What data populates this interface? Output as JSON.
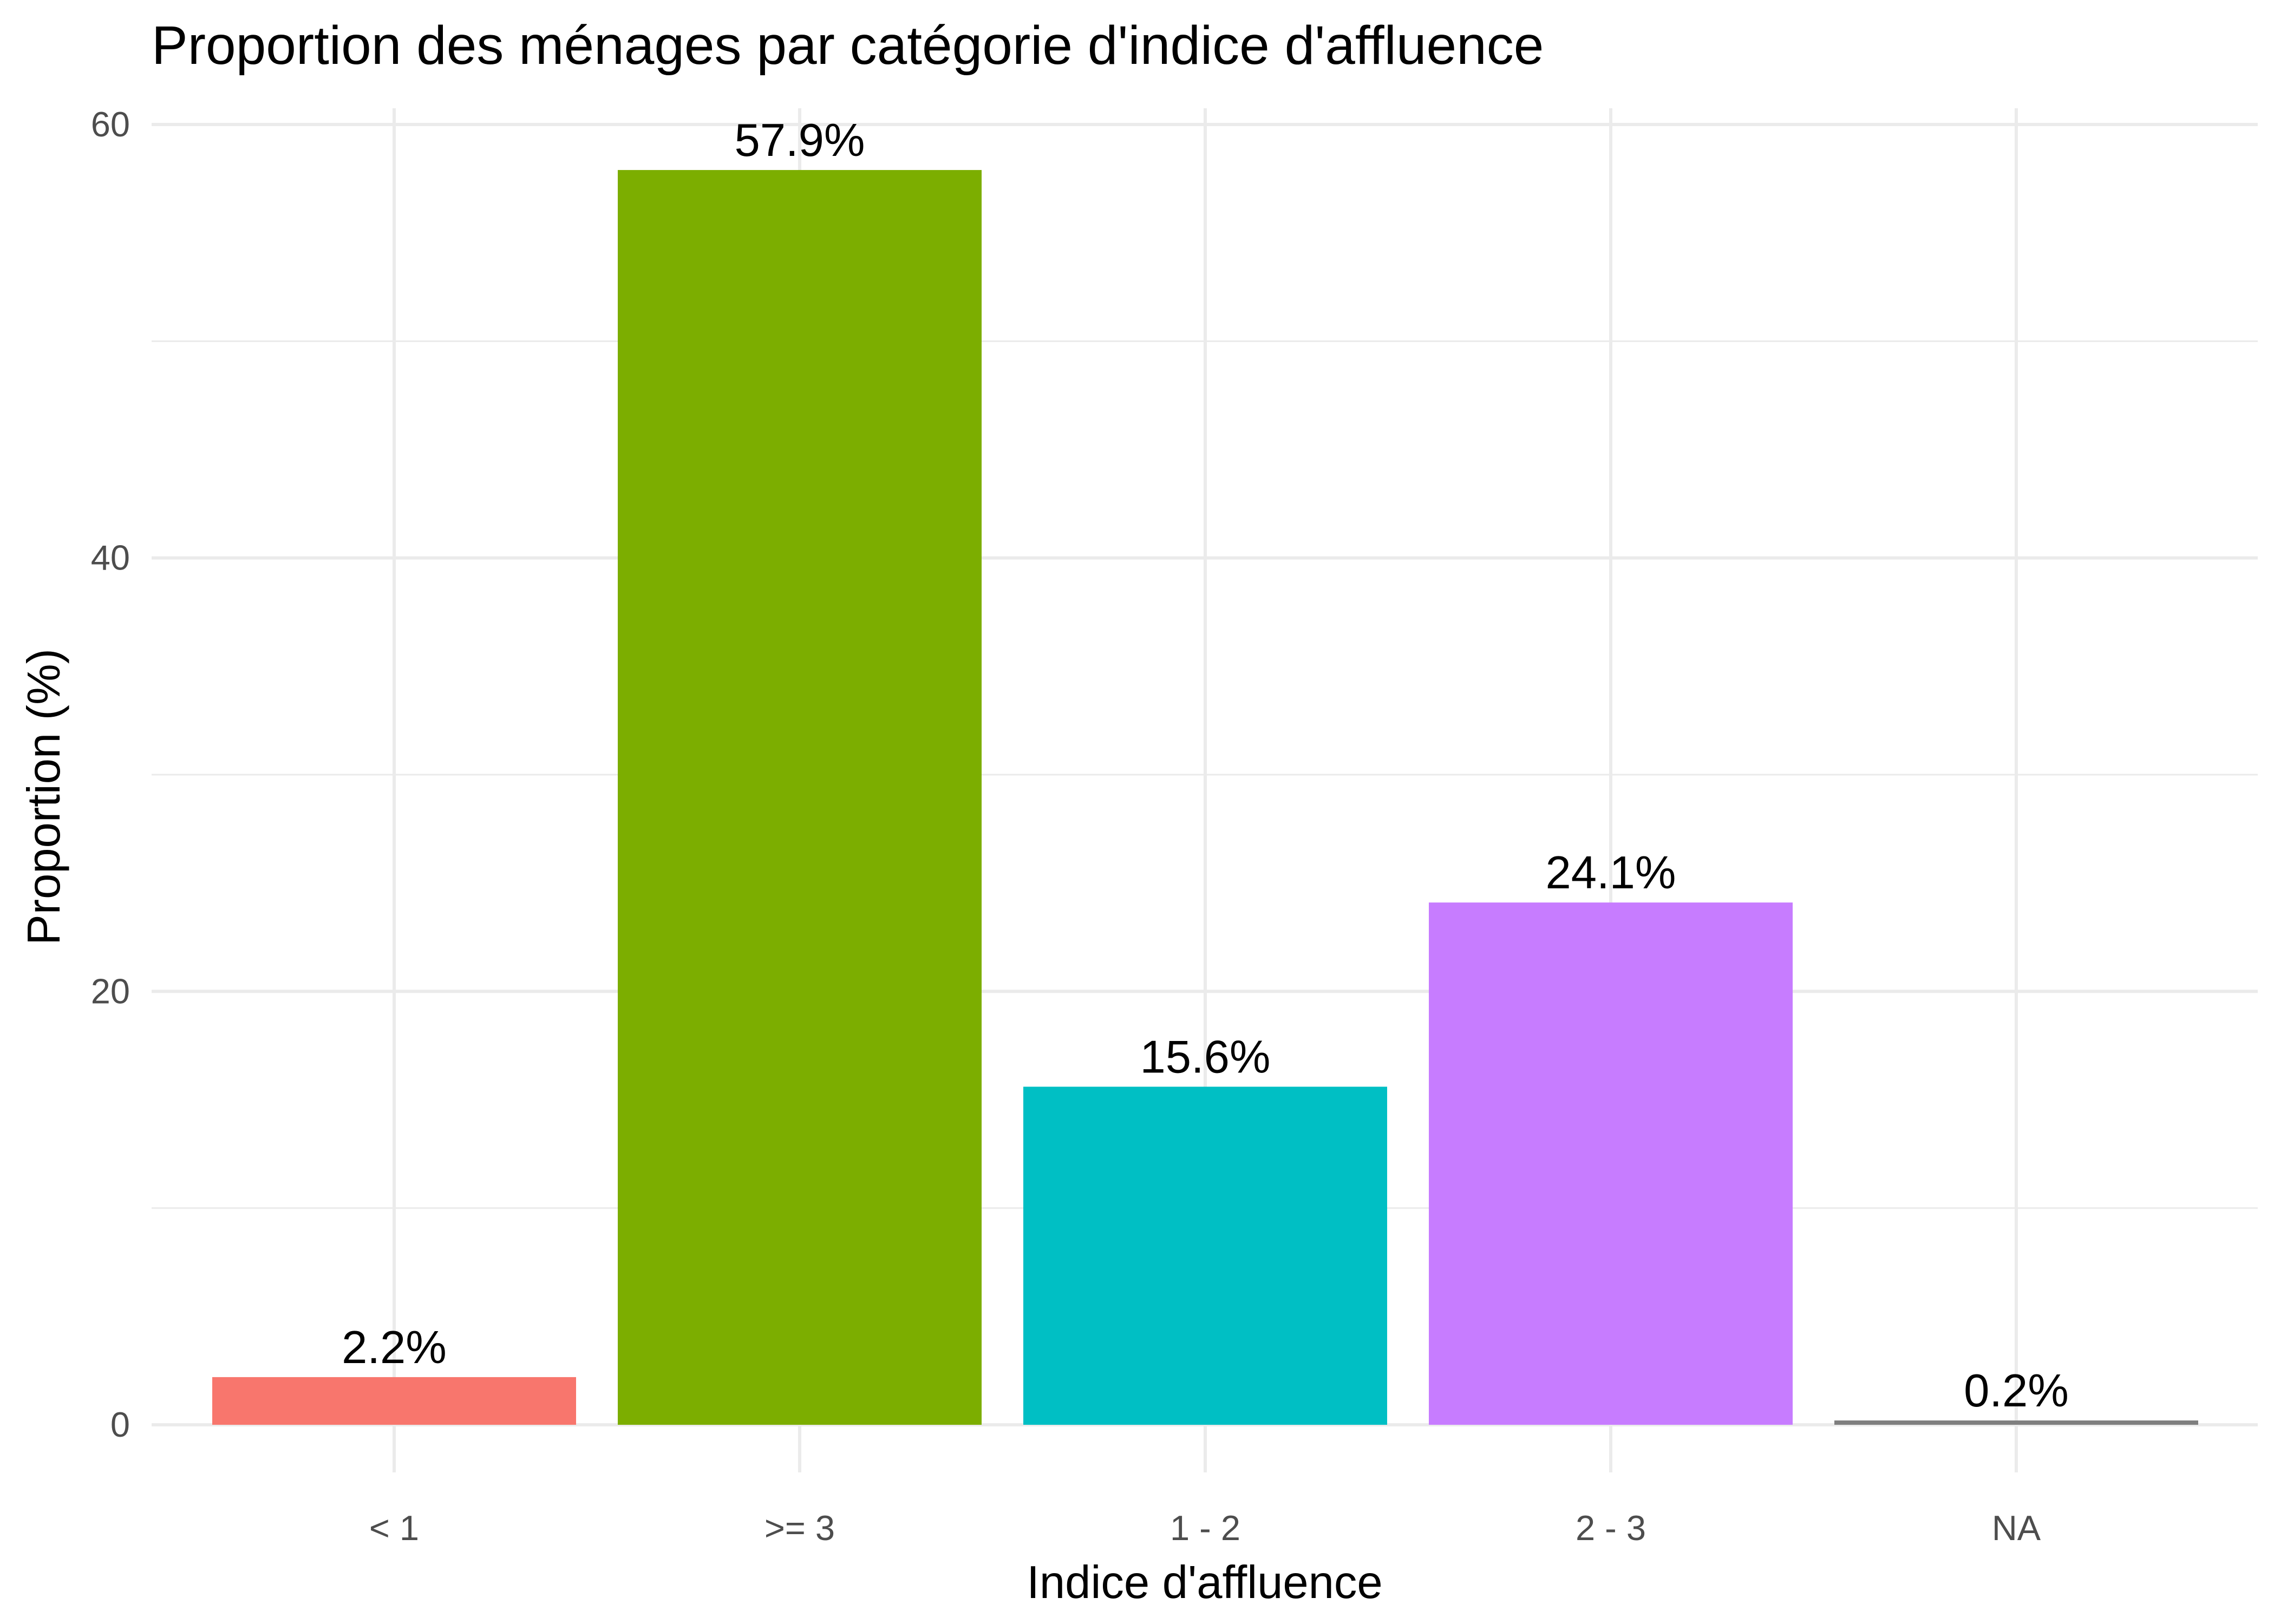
{
  "chart_data": {
    "type": "bar",
    "title": "Proportion des ménages par catégorie d'indice d'affluence",
    "xlabel": "Indice d'affluence",
    "ylabel": "Proportion (%)",
    "categories": [
      "< 1",
      ">= 3",
      "1 - 2",
      "2 - 3",
      "NA"
    ],
    "values": [
      2.2,
      57.9,
      15.6,
      24.1,
      0.2
    ],
    "data_labels": [
      "2.2%",
      "57.9%",
      "15.6%",
      "24.1%",
      "0.2%"
    ],
    "colors": [
      "#F8766D",
      "#7CAE00",
      "#00BFC4",
      "#C77CFF",
      "#7F7F7F"
    ],
    "ylim": [
      0,
      60
    ],
    "yticks": [
      0,
      20,
      40,
      60
    ],
    "ytick_labels": [
      "0",
      "20",
      "40",
      "60"
    ],
    "grid": true,
    "legend": "none"
  }
}
